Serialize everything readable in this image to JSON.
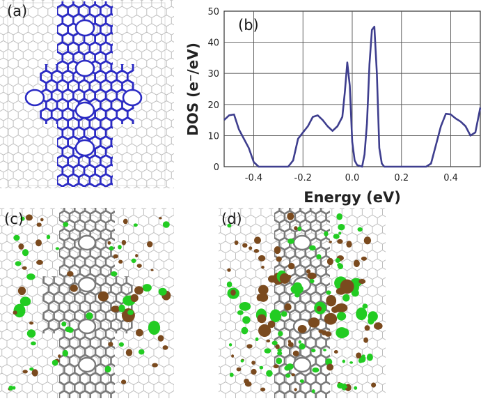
{
  "figure": {
    "panel_labels": {
      "a": "(a)",
      "b": "(b)",
      "c": "(c)",
      "d": "(d)"
    },
    "colors": {
      "lattice": "#bfbfbf",
      "highlight": "#2b2bc4",
      "backbone": "#7a7a7a",
      "dos_line": "#3e3e8e",
      "iso_positive": "#22cc22",
      "iso_negative": "#7a4a1e"
    }
  },
  "chart_data": {
    "type": "line",
    "panel": "(b)",
    "xlabel": "Energy (eV)",
    "ylabel": "DOS (e⁻/eV)",
    "xlim": [
      -0.52,
      0.52
    ],
    "ylim": [
      0,
      50
    ],
    "xticks": [
      -0.4,
      -0.2,
      0.0,
      0.2,
      0.4
    ],
    "xtick_labels": [
      "-0.4",
      "-0.2",
      "0.0",
      "0.2",
      "0.4"
    ],
    "yticks": [
      0,
      10,
      20,
      30,
      40,
      50
    ],
    "ytick_labels": [
      "0",
      "10",
      "20",
      "30",
      "40",
      "50"
    ],
    "grid": true,
    "series": [
      {
        "x": [
          -0.52,
          -0.5,
          -0.48,
          -0.46,
          -0.44,
          -0.42,
          -0.4,
          -0.38,
          -0.36,
          -0.34,
          -0.3,
          -0.26,
          -0.24,
          -0.22,
          -0.2,
          -0.18,
          -0.16,
          -0.14,
          -0.12,
          -0.1,
          -0.08,
          -0.06,
          -0.04,
          -0.03,
          -0.02,
          -0.01,
          0.0,
          0.01,
          0.02,
          0.04,
          0.05,
          0.06,
          0.07,
          0.08,
          0.09,
          0.1,
          0.11,
          0.12,
          0.13,
          0.16,
          0.2,
          0.3,
          0.32,
          0.34,
          0.36,
          0.38,
          0.4,
          0.42,
          0.44,
          0.46,
          0.48,
          0.5,
          0.52
        ],
        "y": [
          15,
          16.5,
          16.8,
          12,
          9,
          6,
          1.5,
          0,
          0,
          0,
          0,
          0,
          2,
          9,
          11,
          13,
          16,
          16.5,
          15,
          13,
          11.5,
          13,
          16,
          24,
          33.5,
          26,
          8,
          2,
          0.5,
          0,
          4,
          14,
          33,
          44,
          45,
          30,
          6,
          1,
          0,
          0,
          0,
          0,
          1,
          7,
          13,
          17,
          16.8,
          15.5,
          14.5,
          13,
          10,
          11,
          19
        ]
      }
    ]
  }
}
